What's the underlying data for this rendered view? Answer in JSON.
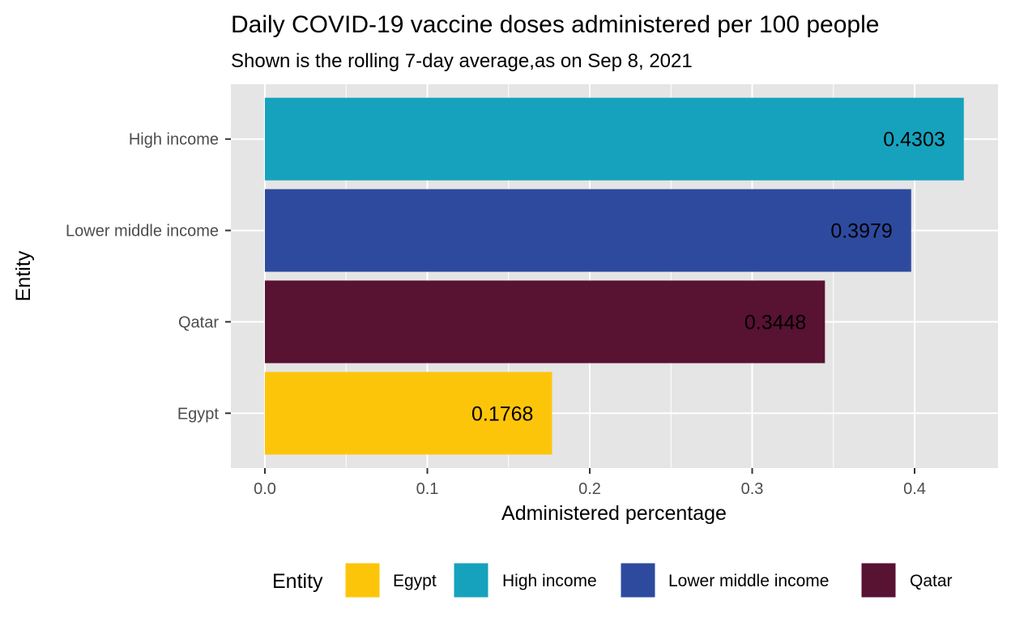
{
  "chart_data": {
    "type": "bar",
    "orientation": "horizontal",
    "title": "Daily COVID-19 vaccine doses administered per 100 people",
    "subtitle": "Shown is the rolling 7-day average,as on Sep 8, 2021",
    "xlabel": "Administered percentage",
    "ylabel": "Entity",
    "xlim": [
      0,
      0.45
    ],
    "x_ticks": [
      0.0,
      0.1,
      0.2,
      0.3,
      0.4
    ],
    "x_tick_labels": [
      "0.0",
      "0.1",
      "0.2",
      "0.3",
      "0.4"
    ],
    "categories": [
      "High income",
      "Lower middle income",
      "Qatar",
      "Egypt"
    ],
    "values": [
      0.4303,
      0.3979,
      0.3448,
      0.1768
    ],
    "value_labels": [
      "0.4303",
      "0.3979",
      "0.3448",
      "0.1768"
    ],
    "colors": [
      "#16a2bd",
      "#2e4a9f",
      "#581232",
      "#fdc50a"
    ],
    "grid": true,
    "legend": {
      "title": "Entity",
      "placement": "bottom",
      "entries": [
        {
          "name": "Egypt",
          "color": "#fdc50a"
        },
        {
          "name": "High income",
          "color": "#16a2bd"
        },
        {
          "name": "Lower middle income",
          "color": "#2e4a9f"
        },
        {
          "name": "Qatar",
          "color": "#581232"
        }
      ]
    },
    "panel_background": "#e5e5e5",
    "grid_color": "#ffffff"
  }
}
